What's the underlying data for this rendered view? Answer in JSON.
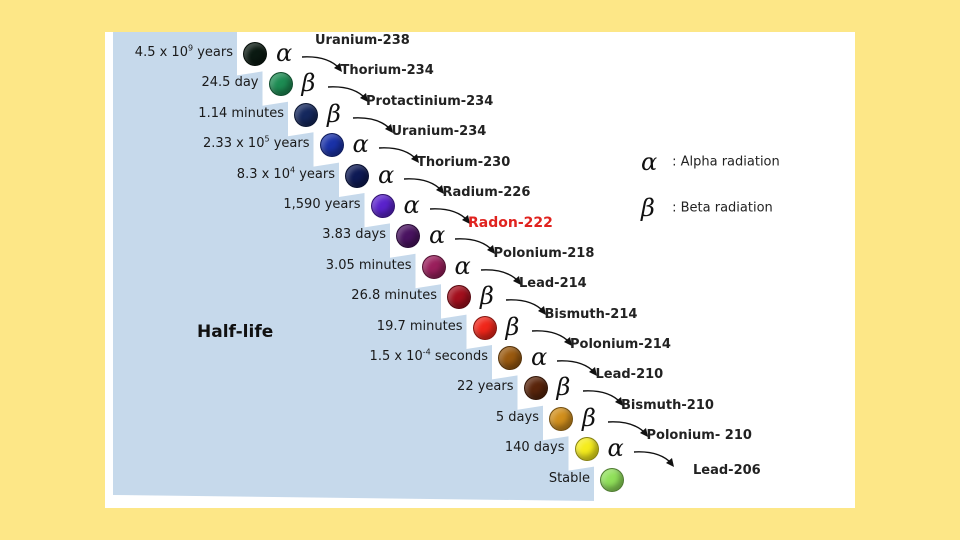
{
  "title": "Half-life",
  "colors": {
    "background": "#fde787",
    "staircase": "#c6d9eb",
    "highlight": "#e0231f"
  },
  "legend": [
    {
      "symbol": "α",
      "text": ": Alpha radiation"
    },
    {
      "symbol": "β",
      "text": ": Beta radiation"
    }
  ],
  "chain": [
    {
      "halflife": "4.5 x 10",
      "exp": "9",
      "halflife_suffix": " years",
      "color": "#0b1a12",
      "radiation": "α",
      "isotope": "Uranium-238"
    },
    {
      "halflife": "24.5 day",
      "exp": "",
      "halflife_suffix": "",
      "color": "#1d8c53",
      "radiation": "β",
      "isotope": "Thorium-234"
    },
    {
      "halflife": "1.14 minutes",
      "exp": "",
      "halflife_suffix": "",
      "color": "#15285e",
      "radiation": "β",
      "isotope": "Protactinium-234"
    },
    {
      "halflife": "2.33 x 10",
      "exp": "5",
      "halflife_suffix": " years",
      "color": "#1a32a8",
      "radiation": "α",
      "isotope": "Uranium-234"
    },
    {
      "halflife": "8.3 x 10",
      "exp": "4",
      "halflife_suffix": " years",
      "color": "#0e1a55",
      "radiation": "α",
      "isotope": "Thorium-230"
    },
    {
      "halflife": "1,590 years",
      "exp": "",
      "halflife_suffix": "",
      "color": "#5a22cc",
      "radiation": "α",
      "isotope": "Radium-226"
    },
    {
      "halflife": "3.83 days",
      "exp": "",
      "halflife_suffix": "",
      "color": "#4a1361",
      "radiation": "α",
      "isotope": "Radon-222",
      "highlight": true
    },
    {
      "halflife": "3.05 minutes",
      "exp": "",
      "halflife_suffix": "",
      "color": "#9a1f5c",
      "radiation": "α",
      "isotope": "Polonium-218"
    },
    {
      "halflife": "26.8 minutes",
      "exp": "",
      "halflife_suffix": "",
      "color": "#a30f1d",
      "radiation": "β",
      "isotope": "Lead-214"
    },
    {
      "halflife": "19.7 minutes",
      "exp": "",
      "halflife_suffix": "",
      "color": "#f0261a",
      "radiation": "β",
      "isotope": "Bismuth-214"
    },
    {
      "halflife": "1.5 x 10",
      "exp": "-4",
      "halflife_suffix": " seconds",
      "color": "#99590f",
      "radiation": "α",
      "isotope": "Polonium-214"
    },
    {
      "halflife": "22 years",
      "exp": "",
      "halflife_suffix": "",
      "color": "#5a250b",
      "radiation": "β",
      "isotope": "Lead-210"
    },
    {
      "halflife": "5 days",
      "exp": "",
      "halflife_suffix": "",
      "color": "#d18f1c",
      "radiation": "β",
      "isotope": "Bismuth-210"
    },
    {
      "halflife": "140 days",
      "exp": "",
      "halflife_suffix": "",
      "color": "#f5ec1c",
      "radiation": "α",
      "isotope": "Polonium- 210"
    },
    {
      "halflife": "Stable",
      "exp": "",
      "halflife_suffix": "",
      "color": "#90e05a",
      "radiation": "",
      "isotope": "Lead-206"
    }
  ]
}
